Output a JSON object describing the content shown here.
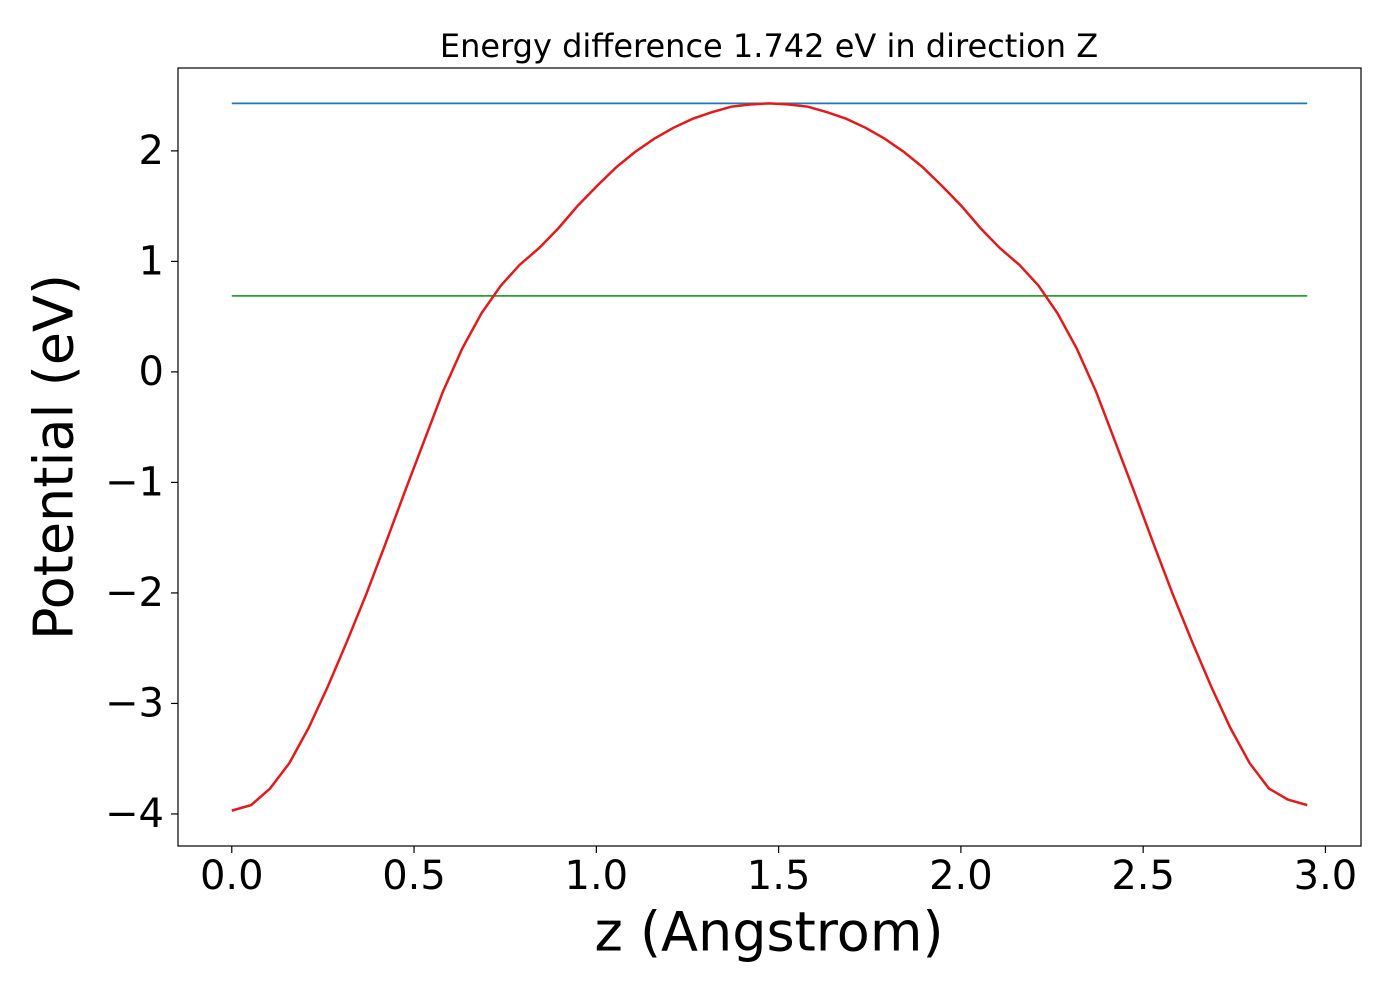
{
  "chart_data": {
    "type": "line",
    "title": "Energy difference 1.742 eV in direction Z",
    "x_label": "z (Angstrom)",
    "y_label": "Potential (eV)",
    "xlim": [
      -0.1475,
      3.0975
    ],
    "ylim": [
      -4.29,
      2.75
    ],
    "xticks": [
      {
        "value": 0,
        "label": "0.0"
      },
      0.5,
      {
        "value": 1,
        "label": "1.0"
      },
      1.5,
      {
        "value": 2,
        "label": "2.0"
      },
      2.5,
      {
        "value": 3,
        "label": "3.0"
      }
    ],
    "yticks": [
      {
        "value": -4,
        "label": "−4"
      },
      {
        "value": -3,
        "label": "−3"
      },
      {
        "value": -2,
        "label": "−2"
      },
      {
        "value": -1,
        "label": "−1"
      },
      0,
      1,
      2
    ],
    "grid": false,
    "series": [
      {
        "color": "#1f77b4",
        "x": [
          0,
          2.95
        ],
        "values": [
          2.43,
          2.43
        ]
      },
      {
        "color": "#2ca02c",
        "x": [
          0,
          2.95
        ],
        "values": [
          0.688,
          0.688
        ]
      },
      {
        "color": "#e31a1c",
        "x": [
          0,
          0.053,
          0.105,
          0.158,
          0.211,
          0.263,
          0.316,
          0.369,
          0.421,
          0.474,
          0.527,
          0.579,
          0.632,
          0.685,
          0.738,
          0.79,
          0.843,
          0.896,
          0.948,
          1.001,
          1.054,
          1.106,
          1.159,
          1.212,
          1.264,
          1.317,
          1.37,
          1.422,
          1.475,
          1.528,
          1.58,
          1.633,
          1.686,
          1.738,
          1.791,
          1.844,
          1.896,
          1.949,
          2.002,
          2.054,
          2.107,
          2.16,
          2.213,
          2.265,
          2.318,
          2.371,
          2.423,
          2.476,
          2.529,
          2.581,
          2.634,
          2.687,
          2.739,
          2.792,
          2.845,
          2.897,
          2.95
        ],
        "values": [
          -3.97,
          -3.92,
          -3.77,
          -3.54,
          -3.22,
          -2.85,
          -2.44,
          -2.01,
          -1.56,
          -1.09,
          -0.63,
          -0.18,
          0.21,
          0.53,
          0.78,
          0.97,
          1.12,
          1.3,
          1.5,
          1.68,
          1.85,
          1.99,
          2.11,
          2.21,
          2.29,
          2.35,
          2.4,
          2.42,
          2.43,
          2.42,
          2.4,
          2.35,
          2.29,
          2.21,
          2.11,
          1.99,
          1.85,
          1.68,
          1.5,
          1.3,
          1.12,
          0.97,
          0.78,
          0.53,
          0.21,
          -0.18,
          -0.63,
          -1.09,
          -1.56,
          -2.01,
          -2.44,
          -2.85,
          -3.22,
          -3.54,
          -3.77,
          -3.87,
          -3.92
        ]
      }
    ]
  }
}
